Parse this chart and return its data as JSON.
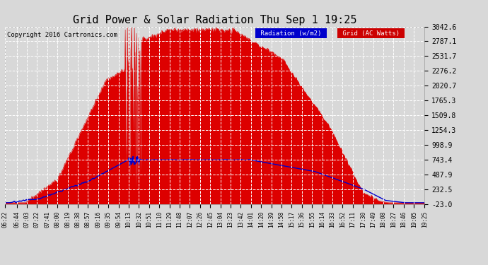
{
  "title": "Grid Power & Solar Radiation Thu Sep 1 19:25",
  "copyright": "Copyright 2016 Cartronics.com",
  "background_color": "#d8d8d8",
  "plot_bg_color": "#d8d8d8",
  "yticks": [
    -23.0,
    232.5,
    487.9,
    743.4,
    998.9,
    1254.3,
    1509.8,
    1765.3,
    2020.7,
    2276.2,
    2531.7,
    2787.1,
    3042.6
  ],
  "ymin": -23.0,
  "ymax": 3042.6,
  "grid_color": "#ffffff",
  "solar_fill_color": "#dd0000",
  "solar_line_color": "#dd0000",
  "radiation_line_color": "#0000cc",
  "legend_radiation_bg": "#0000cc",
  "legend_grid_bg": "#cc0000",
  "xtick_label_fontsize": 5.5,
  "title_fontsize": 11,
  "copyright_fontsize": 6.5,
  "legend_fontsize": 6.5,
  "ylabel_fontsize": 7,
  "xtick_labels": [
    "06:22",
    "06:44",
    "07:03",
    "07:22",
    "07:41",
    "08:00",
    "08:19",
    "08:38",
    "08:57",
    "09:16",
    "09:35",
    "09:54",
    "10:13",
    "10:32",
    "10:51",
    "11:10",
    "11:29",
    "11:48",
    "12:07",
    "12:26",
    "12:45",
    "13:04",
    "13:23",
    "13:42",
    "14:01",
    "14:20",
    "14:39",
    "14:58",
    "15:17",
    "15:36",
    "15:55",
    "16:14",
    "16:33",
    "16:52",
    "17:11",
    "17:30",
    "17:49",
    "18:08",
    "18:27",
    "18:46",
    "19:05",
    "19:25"
  ]
}
